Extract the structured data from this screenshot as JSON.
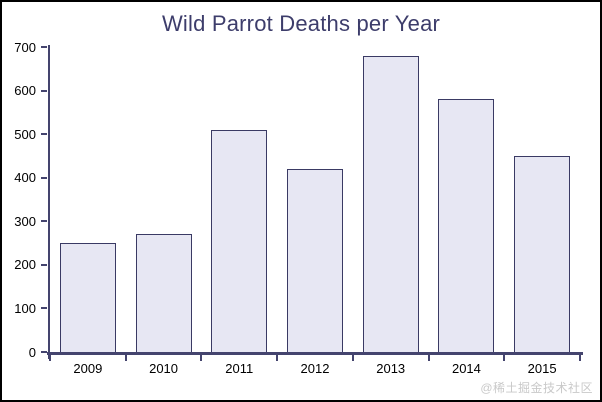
{
  "window": {
    "background": "#ffffff",
    "border_color": "#000000"
  },
  "chart_data": {
    "type": "bar",
    "title": "Wild Parrot Deaths per Year",
    "categories": [
      "2009",
      "2010",
      "2011",
      "2012",
      "2013",
      "2014",
      "2015"
    ],
    "values": [
      250,
      270,
      510,
      420,
      680,
      580,
      450
    ],
    "xlabel": "",
    "ylabel": "",
    "ylim": [
      0,
      700
    ],
    "yticks": [
      0,
      100,
      200,
      300,
      400,
      500,
      600,
      700
    ],
    "grid": false,
    "legend": "none",
    "colors": {
      "bar_fill": "#e7e7f3",
      "bar_border": "#3a3a64",
      "axis": "#44446e",
      "title_text": "#3d3d6b",
      "tick_label": "#000000"
    }
  },
  "watermark": {
    "text": "@稀土掘金技术社区",
    "color": "#c9c9c9"
  }
}
